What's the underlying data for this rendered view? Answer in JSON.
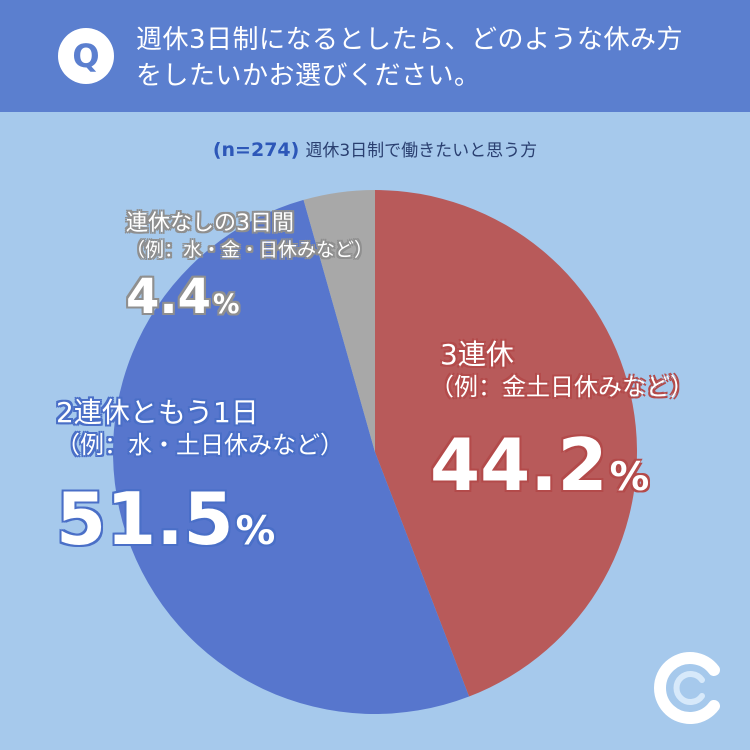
{
  "header": {
    "badge": "Q",
    "question_line1": "週休3日制になるとしたら、どのような休み方",
    "question_line2": "をしたいかお選びください。"
  },
  "subtitle": {
    "n": "(n=274)",
    "text": "週休3日制で働きたいと思う方"
  },
  "colors": {
    "header": "#5b7fcf",
    "background": "#a6c9ec",
    "red": "#b85a5a",
    "blue": "#5776cd",
    "gray": "#a8a8a8"
  },
  "logo": {
    "icon": "c-logo-icon"
  },
  "chart_data": {
    "type": "pie",
    "start_angle": "12 o'clock",
    "direction": "clockwise",
    "slices": [
      {
        "name": "3連休",
        "example": "（例：金土日休みなど）",
        "value": 44.2,
        "value_label": "44.2",
        "unit": "%",
        "color": "#b85a5a"
      },
      {
        "name": "2連休ともう1日",
        "example": "（例：水・土日休みなど）",
        "value": 51.5,
        "value_label": "51.5",
        "unit": "%",
        "color": "#5776cd"
      },
      {
        "name": "連休なしの3日間",
        "example": "（例：水・金・日休みなど）",
        "value": 4.4,
        "value_label": "4.4",
        "unit": "%",
        "color": "#a8a8a8"
      }
    ]
  }
}
